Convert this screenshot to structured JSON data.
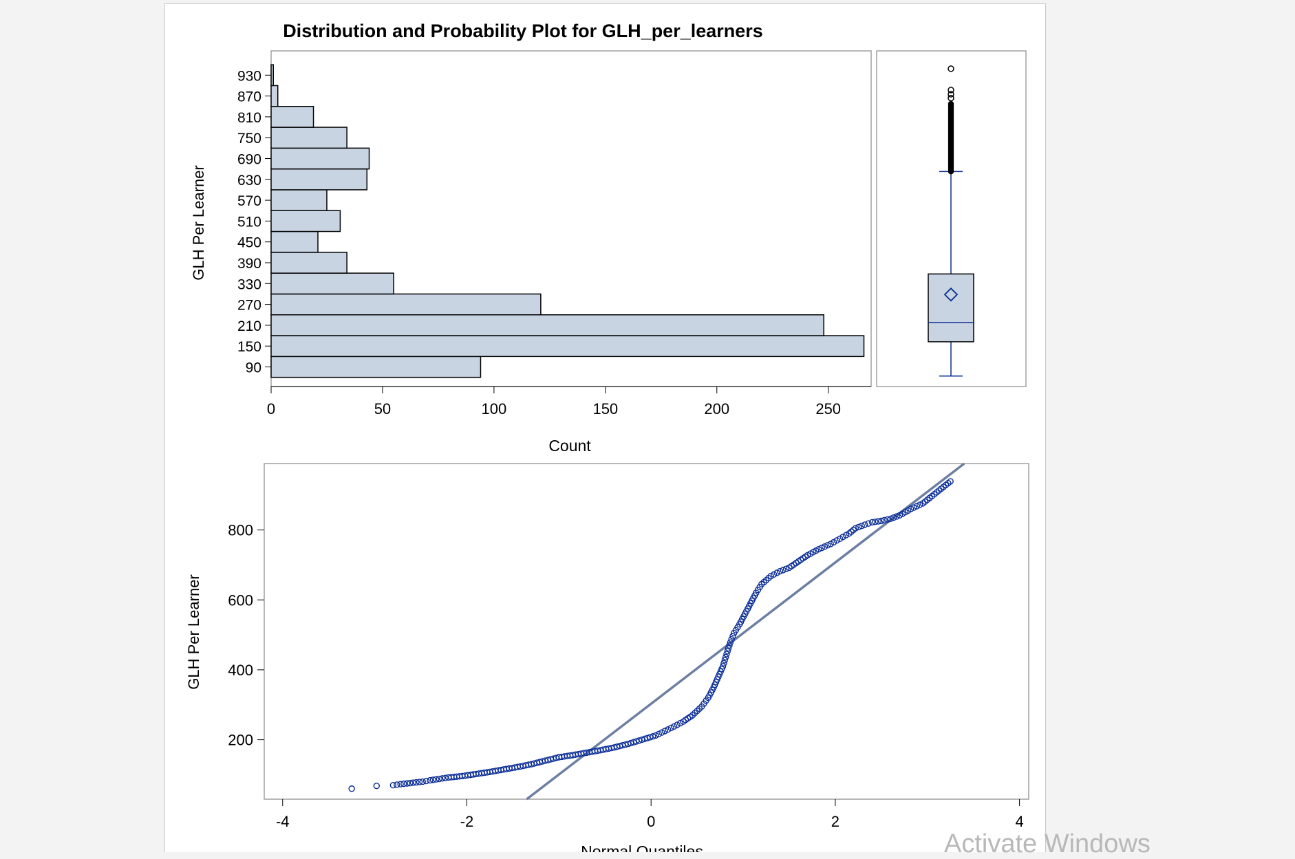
{
  "colors": {
    "bar_fill": "#c9d4e3",
    "bar_stroke": "#000000",
    "box_fill": "#c9d4e3",
    "box_line": "#0a2f8f",
    "point_color": "#0a2d96",
    "ref_line": "#6c7fa3",
    "frame": "#a0a0a0",
    "watermark": "#b8b8b8"
  },
  "watermark_text": "Activate Windows",
  "chart_data": [
    {
      "type": "bar",
      "orientation": "horizontal",
      "title": "Distribution and Probability Plot for GLH_per_learners",
      "xlabel": "Count",
      "ylabel": "GLH Per Learner",
      "categories": [
        "90",
        "150",
        "210",
        "270",
        "330",
        "390",
        "450",
        "510",
        "570",
        "630",
        "690",
        "750",
        "810",
        "870",
        "930"
      ],
      "values": [
        94,
        266,
        248,
        121,
        55,
        34,
        21,
        31,
        25,
        43,
        44,
        34,
        19,
        3,
        1
      ],
      "xlim": [
        0,
        268
      ],
      "xticks": [
        0,
        50,
        100,
        150,
        200,
        250
      ],
      "grid": false
    },
    {
      "type": "box",
      "variable": "GLH Per Learner",
      "min": 60,
      "q1": 158,
      "median": 213,
      "mean": 293,
      "q3": 352,
      "whisker_high": 645,
      "outliers_range": [
        645,
        840
      ],
      "outlier_points": [
        855,
        866,
        878,
        939
      ],
      "ylim": [
        30,
        990
      ]
    },
    {
      "type": "scatter",
      "subtype": "normal probability plot",
      "xlabel": "Normal Quantiles",
      "ylabel": "GLH Per Learner",
      "xlim": [
        -4.2,
        4.1
      ],
      "ylim": [
        30,
        990
      ],
      "xticks": [
        -4,
        -2,
        0,
        2,
        4
      ],
      "yticks": [
        200,
        400,
        600,
        800
      ],
      "reference_line": {
        "points": [
          [
            -1.35,
            30
          ],
          [
            3.4,
            990
          ]
        ]
      },
      "points": [
        [
          -3.25,
          60
        ],
        [
          -2.98,
          68
        ],
        [
          -2.8,
          70
        ],
        [
          -2.72,
          73
        ],
        [
          -2.65,
          75
        ],
        [
          -2.55,
          78
        ],
        [
          -2.48,
          80
        ],
        [
          -2.4,
          84
        ],
        [
          -2.3,
          88
        ],
        [
          -2.2,
          92
        ],
        [
          -2.05,
          96
        ],
        [
          -1.9,
          102
        ],
        [
          -1.75,
          108
        ],
        [
          -1.6,
          115
        ],
        [
          -1.45,
          122
        ],
        [
          -1.3,
          130
        ],
        [
          -1.15,
          140
        ],
        [
          -1.0,
          150
        ],
        [
          -0.85,
          156
        ],
        [
          -0.7,
          163
        ],
        [
          -0.55,
          170
        ],
        [
          -0.4,
          178
        ],
        [
          -0.25,
          188
        ],
        [
          -0.1,
          200
        ],
        [
          0.05,
          212
        ],
        [
          0.15,
          225
        ],
        [
          0.25,
          238
        ],
        [
          0.35,
          252
        ],
        [
          0.45,
          270
        ],
        [
          0.55,
          295
        ],
        [
          0.62,
          320
        ],
        [
          0.68,
          350
        ],
        [
          0.73,
          380
        ],
        [
          0.78,
          410
        ],
        [
          0.82,
          445
        ],
        [
          0.86,
          478
        ],
        [
          0.9,
          505
        ],
        [
          0.96,
          530
        ],
        [
          1.02,
          560
        ],
        [
          1.08,
          590
        ],
        [
          1.14,
          620
        ],
        [
          1.2,
          645
        ],
        [
          1.3,
          668
        ],
        [
          1.4,
          682
        ],
        [
          1.5,
          692
        ],
        [
          1.6,
          710
        ],
        [
          1.7,
          728
        ],
        [
          1.82,
          745
        ],
        [
          1.95,
          760
        ],
        [
          2.05,
          775
        ],
        [
          2.15,
          790
        ],
        [
          2.22,
          805
        ],
        [
          2.32,
          815
        ],
        [
          2.4,
          822
        ],
        [
          2.5,
          826
        ],
        [
          2.6,
          832
        ],
        [
          2.7,
          842
        ],
        [
          2.82,
          860
        ],
        [
          2.95,
          876
        ],
        [
          3.25,
          939
        ]
      ]
    }
  ]
}
